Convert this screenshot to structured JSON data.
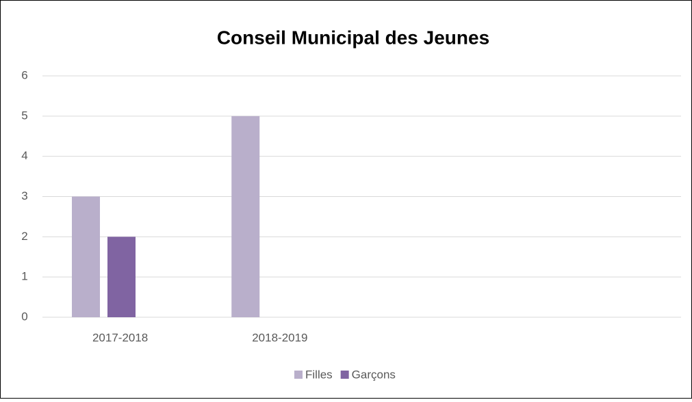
{
  "chart_data": {
    "type": "bar",
    "title": "Conseil Municipal des Jeunes",
    "categories": [
      "2017-2018",
      "2018-2019",
      null,
      null
    ],
    "series": [
      {
        "name": "Filles",
        "color": "#b9afcb",
        "values": [
          3,
          5,
          null,
          null
        ]
      },
      {
        "name": "Garçons",
        "color": "#8064a2",
        "values": [
          2,
          null,
          null,
          null
        ]
      }
    ],
    "ylim": [
      0,
      6
    ],
    "yticks": [
      0,
      1,
      2,
      3,
      4,
      5,
      6
    ],
    "grid": true,
    "legend": "bottom"
  }
}
